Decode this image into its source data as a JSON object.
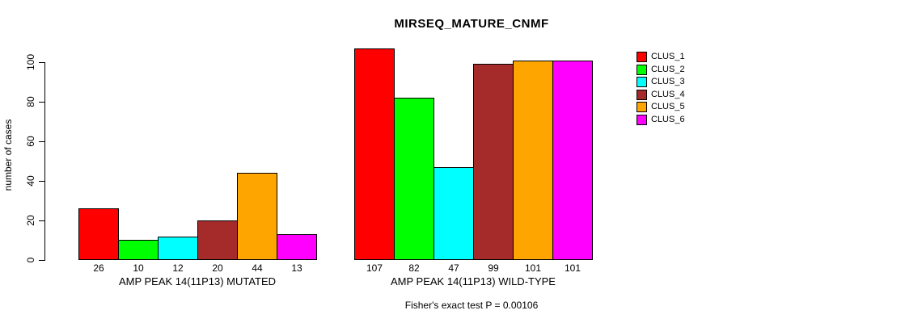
{
  "chart_data": {
    "type": "bar",
    "title": "MIRSEQ_MATURE_CNMF",
    "ylabel": "number of cases",
    "ylim": [
      0,
      100
    ],
    "y_ticks": [
      0,
      20,
      40,
      60,
      80,
      100
    ],
    "grid": false,
    "legend_position": "right-outside",
    "legend": [
      {
        "label": "CLUS_1",
        "color": "#FF0000"
      },
      {
        "label": "CLUS_2",
        "color": "#00FF00"
      },
      {
        "label": "CLUS_3",
        "color": "#00FFFF"
      },
      {
        "label": "CLUS_4",
        "color": "#A52A2A"
      },
      {
        "label": "CLUS_5",
        "color": "#FFA500"
      },
      {
        "label": "CLUS_6",
        "color": "#FF00FF"
      }
    ],
    "groups": [
      {
        "label": "AMP PEAK 14(11P13) MUTATED",
        "values": [
          26,
          10,
          12,
          20,
          44,
          13
        ]
      },
      {
        "label": "AMP PEAK 14(11P13) WILD-TYPE",
        "values": [
          107,
          82,
          47,
          99,
          101,
          101
        ]
      }
    ],
    "annotation": "Fisher's exact test P = 0.00106",
    "axis_color": "#000000",
    "text_color": "#000000",
    "background_color": "#FFFFFF"
  }
}
